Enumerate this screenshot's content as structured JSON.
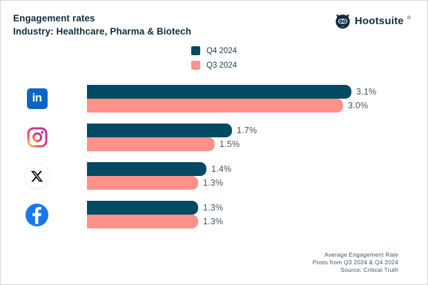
{
  "header": {
    "title": "Engagement rates",
    "subtitle": "Industry: Healthcare, Pharma & Biotech",
    "brand": {
      "name": "Hootsuite",
      "reg_mark": "®"
    }
  },
  "legend": {
    "items": [
      {
        "label": "Q4 2024",
        "color": "#014a63"
      },
      {
        "label": "Q3 2024",
        "color": "#ff918a"
      }
    ]
  },
  "chart_data": {
    "type": "bar",
    "orientation": "horizontal",
    "title": "Engagement rates",
    "subtitle": "Industry: Healthcare, Pharma & Biotech",
    "categories": [
      "LinkedIn",
      "Instagram",
      "X",
      "Facebook"
    ],
    "series": [
      {
        "name": "Q4 2024",
        "color": "#014a63",
        "values": [
          3.1,
          1.7,
          1.4,
          1.3
        ],
        "labels": [
          "3.1%",
          "1.7%",
          "1.4%",
          "1.3%"
        ]
      },
      {
        "name": "Q3 2024",
        "color": "#ff918a",
        "values": [
          3.0,
          1.5,
          1.3,
          1.3
        ],
        "labels": [
          "3.0%",
          "1.5%",
          "1.3%",
          "1.3%"
        ]
      }
    ],
    "xlim": [
      0,
      3.1
    ],
    "value_suffix": "%",
    "legend_position": "top-center",
    "grid": false
  },
  "footer": {
    "lines": [
      "Average Engagement Rate",
      "Posts from Q3 2024 & Q4 2024",
      "Source: Critical Truth"
    ]
  },
  "colors": {
    "q4_bar": "#014a63",
    "q3_bar": "#ff918a",
    "title_text": "#0d2d3d",
    "value_text": "#45535d",
    "linkedin_blue": "#0a66c2",
    "facebook_blue": "#1877f2"
  }
}
